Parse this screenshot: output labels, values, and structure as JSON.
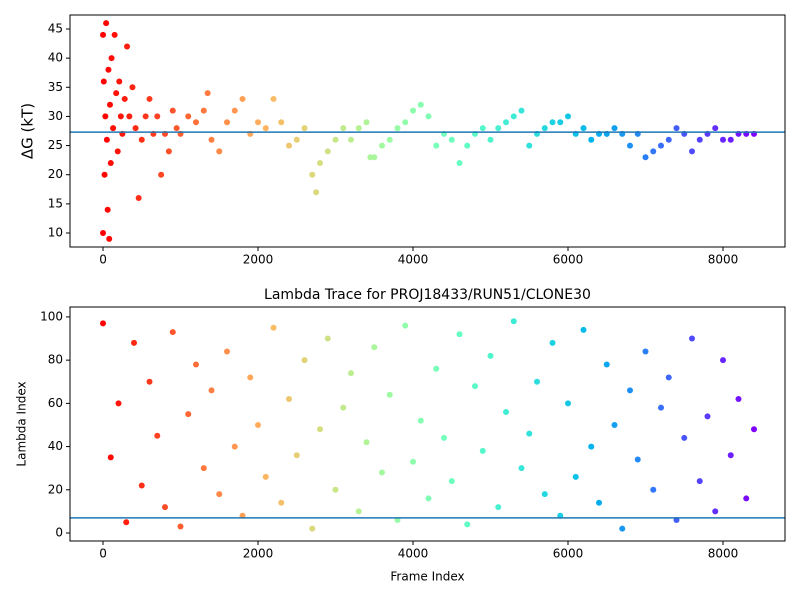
{
  "chart_data": [
    {
      "type": "scatter",
      "ylabel": "ΔG (kT)",
      "colormap": "rainbow_r",
      "x": [
        0,
        0,
        10,
        20,
        30,
        40,
        50,
        60,
        70,
        80,
        90,
        100,
        110,
        130,
        150,
        170,
        190,
        210,
        230,
        250,
        280,
        310,
        340,
        380,
        420,
        460,
        500,
        550,
        600,
        650,
        700,
        750,
        800,
        850,
        900,
        950,
        1000,
        1100,
        1200,
        1300,
        1350,
        1400,
        1500,
        1600,
        1700,
        1800,
        1900,
        2000,
        2100,
        2200,
        2300,
        2400,
        2500,
        2600,
        2700,
        2750,
        2800,
        2900,
        3000,
        3100,
        3200,
        3300,
        3400,
        3450,
        3500,
        3600,
        3700,
        3800,
        3900,
        4000,
        4100,
        4200,
        4300,
        4400,
        4500,
        4600,
        4700,
        4800,
        4900,
        5000,
        5100,
        5200,
        5300,
        5400,
        5500,
        5600,
        5700,
        5800,
        5900,
        6000,
        6100,
        6200,
        6300,
        6400,
        6500,
        6600,
        6700,
        6800,
        6900,
        7000,
        7100,
        7200,
        7300,
        7400,
        7500,
        7600,
        7700,
        7800,
        7900,
        8000,
        8100,
        8200,
        8300,
        8400
      ],
      "values": [
        10,
        44,
        36,
        20,
        30,
        46,
        26,
        14,
        38,
        9,
        32,
        22,
        40,
        28,
        44,
        34,
        24,
        36,
        30,
        27,
        33,
        42,
        30,
        35,
        28,
        16,
        26,
        30,
        33,
        27,
        30,
        20,
        27,
        24,
        31,
        28,
        27,
        30,
        29,
        31,
        34,
        26,
        24,
        29,
        31,
        33,
        27,
        29,
        28,
        33,
        29,
        25,
        26,
        28,
        20,
        17,
        22,
        24,
        26,
        28,
        26,
        28,
        29,
        23,
        23,
        25,
        26,
        28,
        29,
        31,
        32,
        30,
        25,
        27,
        26,
        22,
        25,
        27,
        28,
        26,
        28,
        29,
        30,
        31,
        25,
        27,
        28,
        29,
        29,
        30,
        27,
        28,
        26,
        27,
        27,
        28,
        27,
        25,
        27,
        23,
        24,
        25,
        26,
        28,
        27,
        24,
        26,
        27,
        28,
        26,
        26,
        27,
        27,
        27
      ],
      "hline": 27.3,
      "hline_color": "#1f77b4",
      "xlim": [
        -426,
        8800
      ],
      "ylim": [
        7.6,
        47.4
      ],
      "xticks": [
        0,
        2000,
        4000,
        6000,
        8000
      ],
      "yticks": [
        10,
        15,
        20,
        25,
        30,
        35,
        40,
        45
      ]
    },
    {
      "type": "scatter",
      "title": "Lambda Trace for PROJ18433/RUN51/CLONE30",
      "xlabel": "Frame Index",
      "ylabel": "Lambda Index",
      "colormap": "rainbow_r",
      "x": [
        0,
        100,
        200,
        300,
        400,
        500,
        600,
        700,
        800,
        900,
        1000,
        1100,
        1200,
        1300,
        1400,
        1500,
        1600,
        1700,
        1800,
        1900,
        2000,
        2100,
        2200,
        2300,
        2400,
        2500,
        2600,
        2700,
        2800,
        2900,
        3000,
        3100,
        3200,
        3300,
        3400,
        3500,
        3600,
        3700,
        3800,
        3900,
        4000,
        4100,
        4200,
        4300,
        4400,
        4500,
        4600,
        4700,
        4800,
        4900,
        5000,
        5100,
        5200,
        5300,
        5400,
        5500,
        5600,
        5700,
        5800,
        5900,
        6000,
        6100,
        6200,
        6300,
        6400,
        6500,
        6600,
        6700,
        6800,
        6900,
        7000,
        7100,
        7200,
        7300,
        7400,
        7500,
        7600,
        7700,
        7800,
        7900,
        8000,
        8100,
        8200,
        8300,
        8400
      ],
      "values": [
        97,
        35,
        60,
        5,
        88,
        22,
        70,
        45,
        12,
        93,
        3,
        55,
        78,
        30,
        66,
        18,
        84,
        40,
        8,
        72,
        50,
        26,
        95,
        14,
        62,
        36,
        80,
        2,
        48,
        90,
        20,
        58,
        74,
        10,
        42,
        86,
        28,
        64,
        6,
        96,
        33,
        52,
        16,
        76,
        44,
        24,
        92,
        4,
        68,
        38,
        82,
        12,
        56,
        98,
        30,
        46,
        70,
        18,
        88,
        8,
        60,
        26,
        94,
        40,
        14,
        78,
        50,
        2,
        66,
        34,
        84,
        20,
        58,
        72,
        6,
        44,
        90,
        24,
        54,
        10,
        80,
        36,
        62,
        16,
        48
      ],
      "hline": 7,
      "hline_color": "#1f77b4",
      "xlim": [
        -426,
        8800
      ],
      "ylim": [
        -3.7,
        104.6
      ],
      "xticks": [
        0,
        2000,
        4000,
        6000,
        8000
      ],
      "yticks": [
        0,
        20,
        40,
        60,
        80,
        100
      ]
    }
  ]
}
